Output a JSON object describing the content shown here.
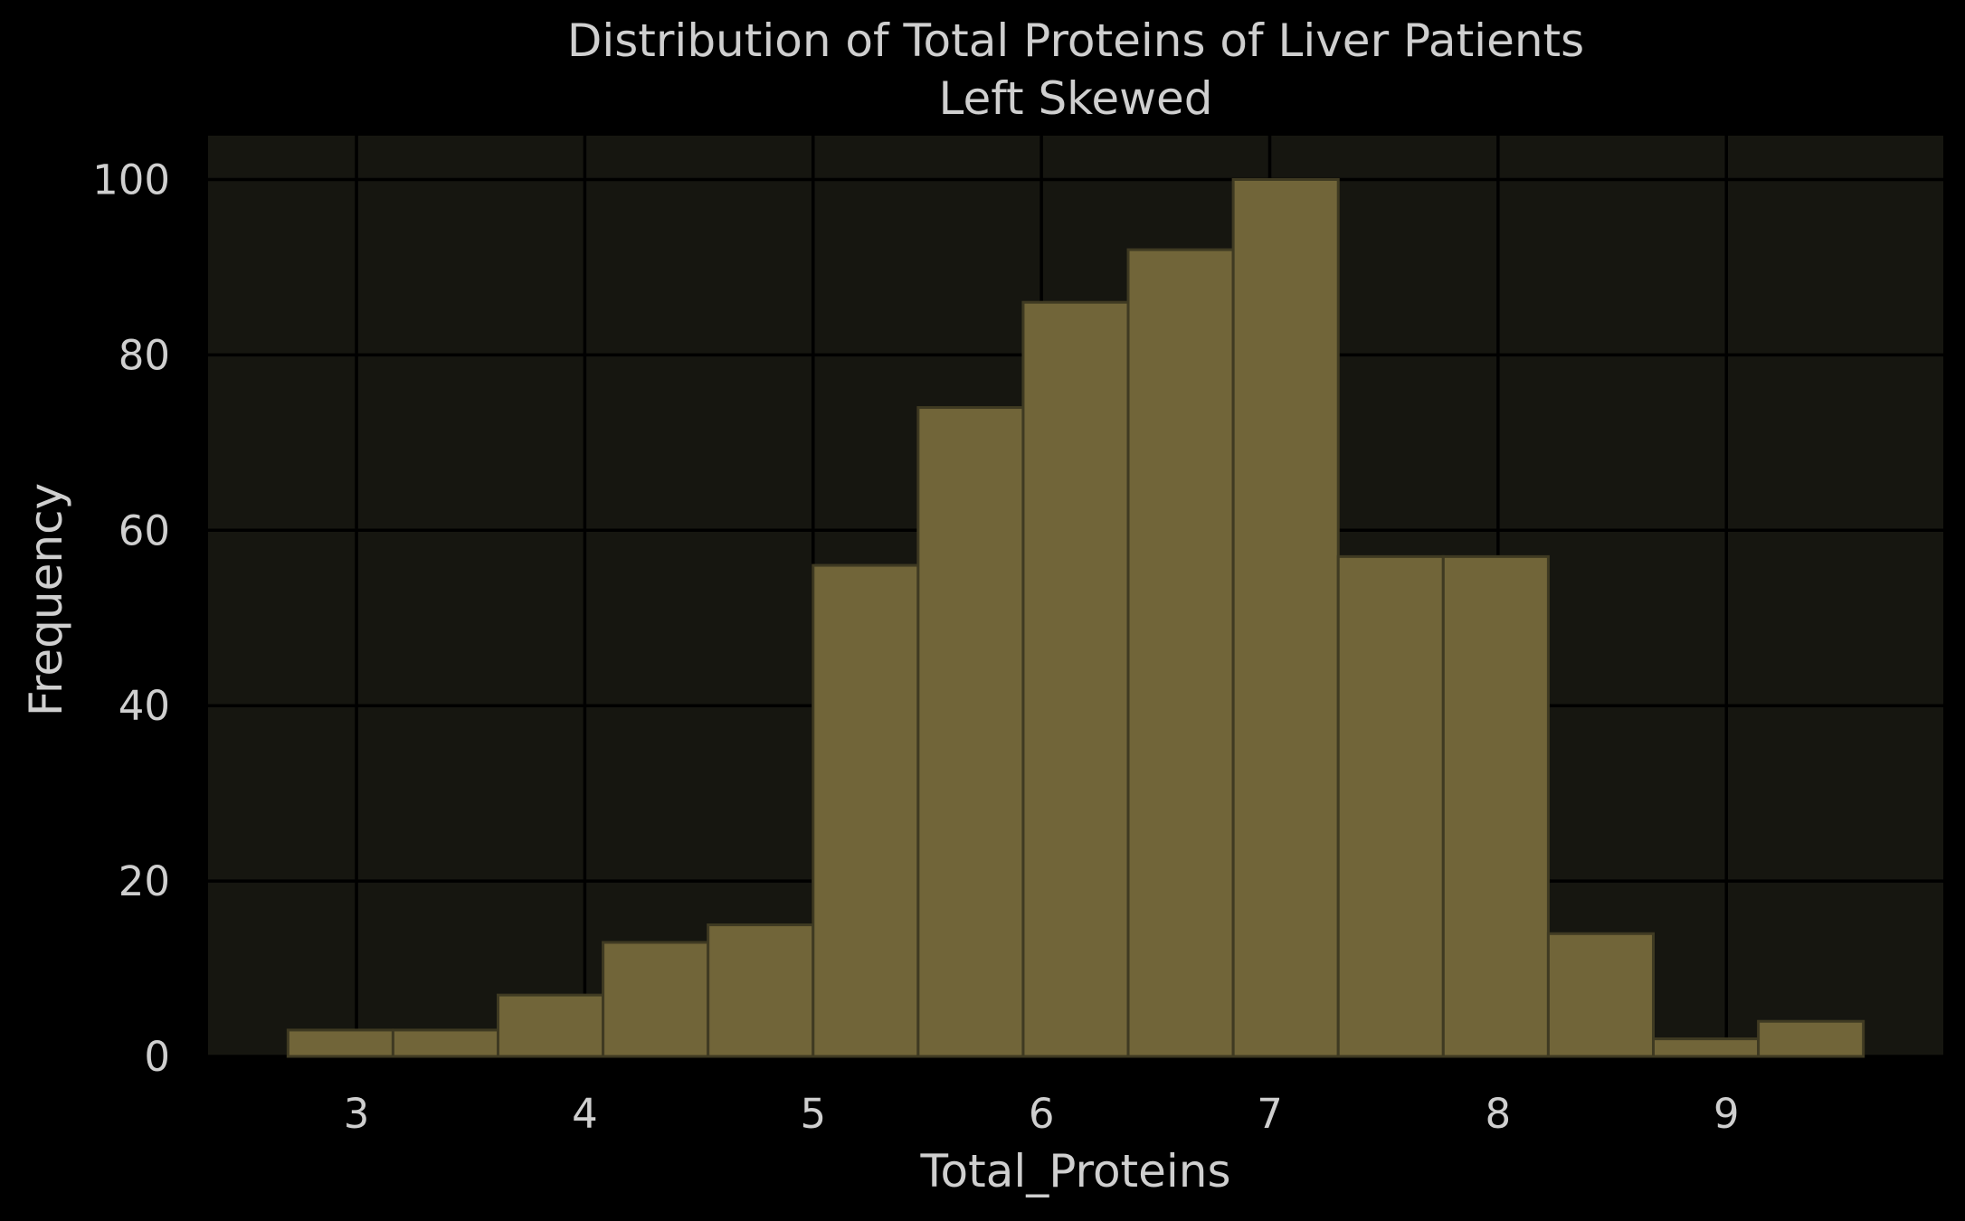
{
  "chart_data": {
    "type": "bar",
    "title": "Distribution of Total Proteins of Liver Patients",
    "subtitle": "Left Skewed",
    "xlabel": "Total_Proteins",
    "ylabel": "Frequency",
    "bin_edges": [
      2.7,
      3.16,
      3.62,
      4.08,
      4.54,
      5.0,
      5.46,
      5.92,
      6.38,
      6.84,
      7.3,
      7.76,
      8.22,
      8.68,
      9.14,
      9.6
    ],
    "values": [
      3,
      3,
      7,
      13,
      15,
      56,
      74,
      86,
      92,
      100,
      57,
      57,
      14,
      2,
      4
    ],
    "xlim": [
      2.35,
      9.95
    ],
    "ylim": [
      0,
      105
    ],
    "xticks": [
      3,
      4,
      5,
      6,
      7,
      8,
      9
    ],
    "yticks": [
      0,
      20,
      40,
      60,
      80,
      100
    ],
    "grid": true,
    "colors": {
      "background": "#000000",
      "plot_background": "#161610",
      "bar_fill": "#716539",
      "text": "#cfcfcf",
      "grid": "#000000"
    }
  }
}
